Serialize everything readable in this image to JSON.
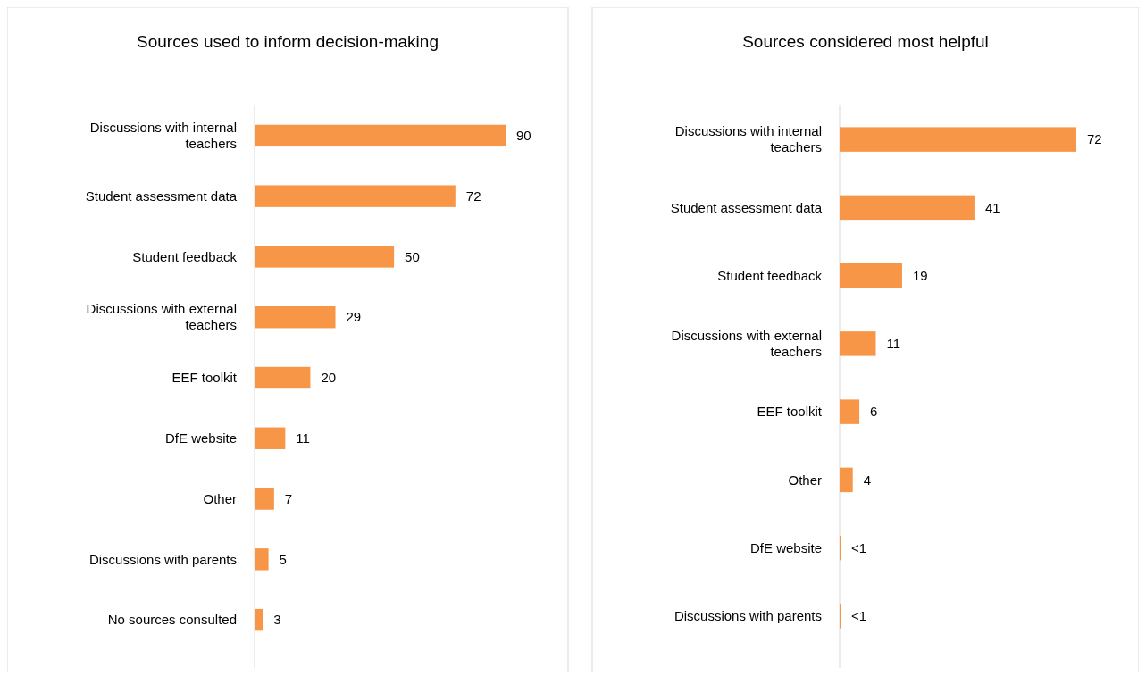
{
  "chart_data": [
    {
      "type": "bar",
      "orientation": "horizontal",
      "title": "Sources used to inform decision-making",
      "categories": [
        "Discussions with internal teachers",
        "Student assessment data",
        "Student feedback",
        "Discussions with external teachers",
        "EEF toolkit",
        "DfE website",
        "Other",
        "Discussions with parents",
        "No sources consulted"
      ],
      "values": [
        90,
        72,
        50,
        29,
        20,
        11,
        7,
        5,
        3
      ],
      "color": "#f79646",
      "data_labels": true
    },
    {
      "type": "bar",
      "orientation": "horizontal",
      "title": "Sources considered most helpful",
      "categories": [
        "Discussions with internal teachers",
        "Student assessment data",
        "Student feedback",
        "Discussions with external teachers",
        "EEF toolkit",
        "Other",
        "DfE website",
        "Discussions with parents"
      ],
      "values": [
        72,
        41,
        19,
        11,
        6,
        4,
        0.3,
        0.3
      ],
      "value_labels": [
        "72",
        "41",
        "19",
        "11",
        "6",
        "4",
        "<1",
        "<1"
      ],
      "color": "#f79646"
    }
  ]
}
